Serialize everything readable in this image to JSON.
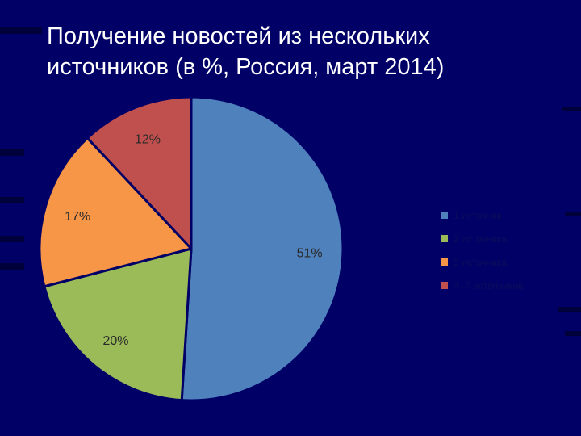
{
  "title": {
    "line1": "Получение новостей из нескольких",
    "line2": "источников (в %, Россия, март 2014)"
  },
  "colors": {
    "background": "#000066",
    "slices": [
      "#4f81bd",
      "#9bbb59",
      "#f79646",
      "#c0504d"
    ]
  },
  "chart_data": {
    "type": "pie",
    "categories": [
      "1 источник",
      "2 источника",
      "3 источника",
      "4 -7 источников"
    ],
    "values": [
      51,
      20,
      17,
      12
    ],
    "value_labels": [
      "51%",
      "20%",
      "17%",
      "12%"
    ],
    "start_angle": "12 o'clock",
    "direction": "clockwise",
    "legend_position": "right"
  }
}
